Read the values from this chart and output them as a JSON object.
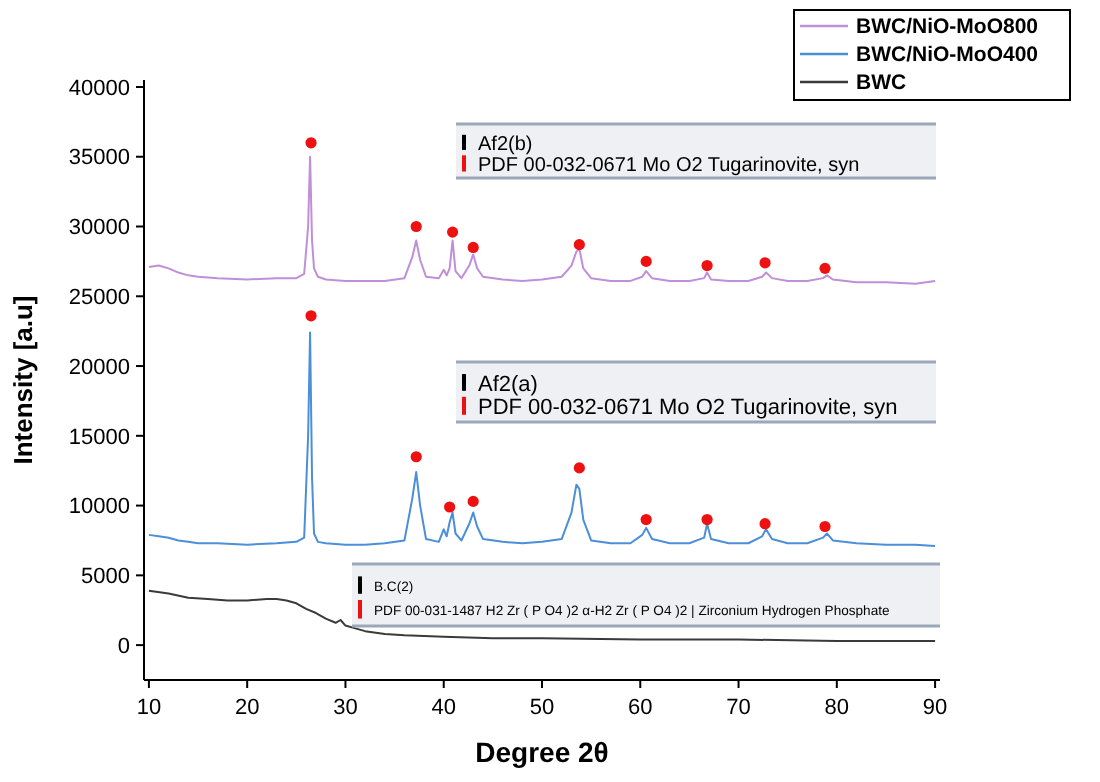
{
  "chart_data": {
    "type": "line",
    "xlabel": "Degree 2θ",
    "ylabel": "Intensity [a.u]",
    "xlim": [
      9.5,
      90.5
    ],
    "ylim": [
      -2500,
      40500
    ],
    "xticks": [
      10,
      20,
      30,
      40,
      50,
      60,
      70,
      80,
      90
    ],
    "yticks": [
      0,
      5000,
      10000,
      15000,
      20000,
      25000,
      30000,
      35000,
      40000
    ],
    "legend": "top right",
    "x": [
      10,
      11,
      12,
      13,
      14,
      15,
      17,
      20,
      23,
      25,
      25.8,
      26.2,
      26.4,
      26.6,
      26.8,
      27.2,
      28,
      30,
      32,
      34,
      36,
      36.8,
      37.2,
      37.6,
      38.2,
      39.5,
      40,
      40.3,
      40.6,
      40.9,
      41.2,
      41.8,
      42.6,
      43,
      43.4,
      44,
      46,
      48,
      50,
      52,
      53,
      53.5,
      53.8,
      54.2,
      55,
      57,
      59,
      60.2,
      60.6,
      61.2,
      63,
      65,
      66.5,
      66.8,
      67.2,
      69,
      71,
      72.4,
      72.8,
      73.4,
      75,
      77,
      78.6,
      79,
      79.6,
      82,
      85,
      88,
      90
    ],
    "series": [
      {
        "name": "BWC/NiO-MoO800",
        "color": "#c08fd8",
        "values": [
          27100,
          27200,
          27000,
          26700,
          26500,
          26400,
          26300,
          26200,
          26300,
          26300,
          26600,
          30000,
          35000,
          29000,
          27000,
          26400,
          26200,
          26100,
          26100,
          26100,
          26300,
          27800,
          29000,
          27600,
          26400,
          26300,
          26900,
          26500,
          27000,
          29000,
          26800,
          26300,
          27200,
          28000,
          27000,
          26400,
          26200,
          26100,
          26200,
          26400,
          27200,
          28200,
          28400,
          27000,
          26300,
          26100,
          26100,
          26400,
          26800,
          26300,
          26100,
          26100,
          26300,
          26700,
          26200,
          26100,
          26100,
          26400,
          26700,
          26300,
          26100,
          26100,
          26300,
          26500,
          26200,
          26000,
          26000,
          25900,
          26100
        ]
      },
      {
        "name": "BWC/NiO-MoO400",
        "color": "#4a8fd8",
        "values": [
          7900,
          7800,
          7700,
          7500,
          7400,
          7300,
          7300,
          7200,
          7300,
          7400,
          7700,
          15000,
          22400,
          12000,
          8000,
          7400,
          7300,
          7200,
          7200,
          7300,
          7500,
          10500,
          12400,
          10000,
          7600,
          7400,
          8300,
          7800,
          8800,
          9500,
          8000,
          7500,
          8700,
          9500,
          8500,
          7600,
          7400,
          7300,
          7400,
          7600,
          9500,
          11500,
          11200,
          9000,
          7500,
          7300,
          7300,
          7900,
          8400,
          7600,
          7300,
          7300,
          7700,
          8700,
          7600,
          7300,
          7300,
          7800,
          8300,
          7600,
          7300,
          7300,
          7700,
          8000,
          7500,
          7300,
          7200,
          7200,
          7100
        ]
      },
      {
        "name": "BWC",
        "color": "#3a3a3a",
        "x": [
          10,
          12,
          14,
          16,
          18,
          20,
          22,
          23,
          24,
          25,
          26,
          27,
          28,
          29,
          29.5,
          30,
          31,
          32,
          34,
          36,
          40,
          45,
          50,
          60,
          70,
          80,
          90
        ],
        "values": [
          3900,
          3700,
          3400,
          3300,
          3200,
          3200,
          3300,
          3300,
          3200,
          3000,
          2600,
          2300,
          1900,
          1600,
          1800,
          1400,
          1200,
          1000,
          800,
          700,
          600,
          500,
          500,
          400,
          400,
          300,
          300
        ]
      },
      {
        "type": "scatter",
        "color": "#ee1111",
        "marker": "circle",
        "x": [
          26.5,
          37.2,
          40.9,
          43,
          53.8,
          60.6,
          66.8,
          72.7,
          78.8
        ],
        "values": [
          36000,
          30000,
          29600,
          28500,
          28700,
          27500,
          27200,
          27400,
          27000
        ]
      },
      {
        "type": "scatter",
        "color": "#ee1111",
        "marker": "circle",
        "x": [
          26.5,
          37.2,
          40.6,
          43,
          53.8,
          60.6,
          66.8,
          72.7,
          78.8
        ],
        "values": [
          23600,
          13500,
          9900,
          10300,
          12700,
          9000,
          9000,
          8700,
          8500
        ]
      }
    ],
    "annotations": [
      "Af2(b)",
      "PDF 00-032-0671 Mo O2 Tugarinovite, syn",
      "Af2(a)",
      "PDF 00-032-0671 Mo O2 Tugarinovite, syn",
      "B.C(2)",
      "PDF 00-031-1487 H2 Zr ( P O4 )2 α-H2 Zr ( P O4 )2 | Zirconium Hydrogen Phosphate"
    ]
  }
}
